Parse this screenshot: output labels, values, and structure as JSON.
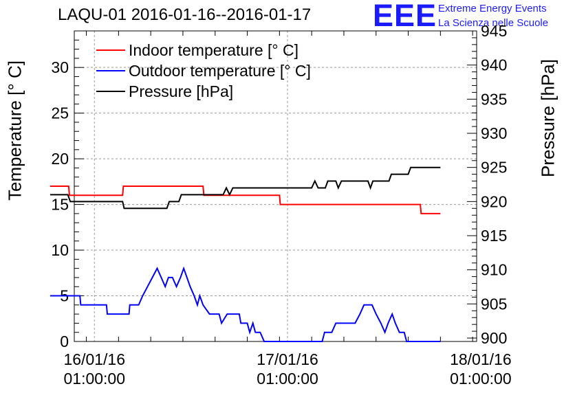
{
  "header": {
    "title": "LAQU-01 2016-01-16--2016-01-17",
    "logo_text": "EEE",
    "logo_line1": "Extreme Energy Events",
    "logo_line2": "La Scienza nelle Scuole"
  },
  "chart_data": {
    "type": "line",
    "title": "LAQU-01 2016-01-16--2016-01-17",
    "xlabel": "",
    "ylabel_left": "Temperature [° C]",
    "ylabel_right": "Pressure [hPa]",
    "x_unit": "hours since 16/01/16 00:00:00",
    "xlim": [
      -1.5,
      48.5
    ],
    "ylim_left": [
      0,
      34
    ],
    "ylim_right": [
      899.5,
      945
    ],
    "grid": true,
    "legend_position": "top-left",
    "x_ticks": [
      {
        "x": 1,
        "label_line1": "16/01/16",
        "label_line2": "01:00:00"
      },
      {
        "x": 25,
        "label_line1": "17/01/16",
        "label_line2": "01:00:00"
      },
      {
        "x": 49,
        "label_line1": "18/01/16",
        "label_line2": "01:00:00"
      }
    ],
    "y_ticks_left": [
      "0",
      "5",
      "10",
      "15",
      "20",
      "25",
      "30"
    ],
    "y_tick_values_left": [
      0,
      5,
      10,
      15,
      20,
      25,
      30
    ],
    "y_ticks_right": [
      "900",
      "905",
      "910",
      "915",
      "920",
      "925",
      "930",
      "935",
      "940",
      "945"
    ],
    "y_tick_values_right": [
      900,
      905,
      910,
      915,
      920,
      925,
      930,
      935,
      940,
      945
    ],
    "series": [
      {
        "name": "Indoor temperature [° C]",
        "axis": "left",
        "color": "#ff0000",
        "points": [
          [
            -4.5,
            17
          ],
          [
            -2.2,
            17
          ],
          [
            -2.1,
            16
          ],
          [
            4.5,
            16
          ],
          [
            4.6,
            17
          ],
          [
            14.5,
            17
          ],
          [
            14.6,
            16
          ],
          [
            24.0,
            16
          ],
          [
            24.1,
            15
          ],
          [
            41.5,
            15
          ],
          [
            41.6,
            14
          ],
          [
            44.0,
            14
          ]
        ]
      },
      {
        "name": "Outdoor temperature [° C]",
        "axis": "left",
        "color": "#0000ff",
        "points": [
          [
            -4.5,
            5
          ],
          [
            -0.8,
            5
          ],
          [
            -0.7,
            4
          ],
          [
            2.5,
            4
          ],
          [
            2.6,
            3
          ],
          [
            5.3,
            3
          ],
          [
            5.4,
            4
          ],
          [
            6.5,
            4
          ],
          [
            7.0,
            5
          ],
          [
            7.6,
            6
          ],
          [
            8.2,
            7
          ],
          [
            8.8,
            8
          ],
          [
            9.3,
            7
          ],
          [
            9.8,
            6
          ],
          [
            10.2,
            7
          ],
          [
            10.7,
            7
          ],
          [
            11.2,
            6
          ],
          [
            11.7,
            7
          ],
          [
            12.1,
            8
          ],
          [
            12.5,
            7
          ],
          [
            12.9,
            6
          ],
          [
            13.4,
            5
          ],
          [
            13.8,
            4
          ],
          [
            14.1,
            5
          ],
          [
            14.5,
            4
          ],
          [
            15.3,
            3
          ],
          [
            16.5,
            3
          ],
          [
            16.8,
            2
          ],
          [
            17.5,
            3
          ],
          [
            19.0,
            3
          ],
          [
            19.2,
            2
          ],
          [
            20.0,
            2
          ],
          [
            20.3,
            1
          ],
          [
            20.7,
            2
          ],
          [
            21.0,
            1
          ],
          [
            21.6,
            1
          ],
          [
            22.1,
            0
          ],
          [
            29.3,
            0
          ],
          [
            29.6,
            1
          ],
          [
            30.5,
            1
          ],
          [
            31.0,
            2
          ],
          [
            33.4,
            2
          ],
          [
            34.0,
            3
          ],
          [
            34.5,
            4
          ],
          [
            35.5,
            4
          ],
          [
            36.0,
            3
          ],
          [
            36.6,
            2
          ],
          [
            37.1,
            1
          ],
          [
            37.5,
            2
          ],
          [
            38.0,
            3
          ],
          [
            38.4,
            2
          ],
          [
            38.9,
            1
          ],
          [
            39.5,
            1
          ],
          [
            39.8,
            0
          ],
          [
            44.0,
            0
          ]
        ]
      },
      {
        "name": "Pressure [hPa]",
        "axis": "right",
        "color": "#000000",
        "points": [
          [
            -4.5,
            921
          ],
          [
            -2.3,
            921
          ],
          [
            -2.0,
            920
          ],
          [
            4.5,
            920
          ],
          [
            4.7,
            919
          ],
          [
            8.8,
            919
          ],
          [
            9.0,
            919
          ],
          [
            10.0,
            919
          ],
          [
            10.3,
            920
          ],
          [
            11.5,
            920
          ],
          [
            11.8,
            921
          ],
          [
            17.0,
            921
          ],
          [
            17.4,
            922
          ],
          [
            17.8,
            921
          ],
          [
            18.2,
            922
          ],
          [
            24.0,
            922
          ],
          [
            28.0,
            922
          ],
          [
            28.4,
            923
          ],
          [
            28.8,
            922
          ],
          [
            29.7,
            922
          ],
          [
            30.0,
            923
          ],
          [
            31.0,
            923
          ],
          [
            31.3,
            922
          ],
          [
            31.7,
            923
          ],
          [
            35.0,
            923
          ],
          [
            35.3,
            922
          ],
          [
            35.6,
            923
          ],
          [
            37.6,
            923
          ],
          [
            37.9,
            924
          ],
          [
            40.0,
            924
          ],
          [
            40.3,
            925
          ],
          [
            44.0,
            925
          ]
        ]
      }
    ]
  }
}
